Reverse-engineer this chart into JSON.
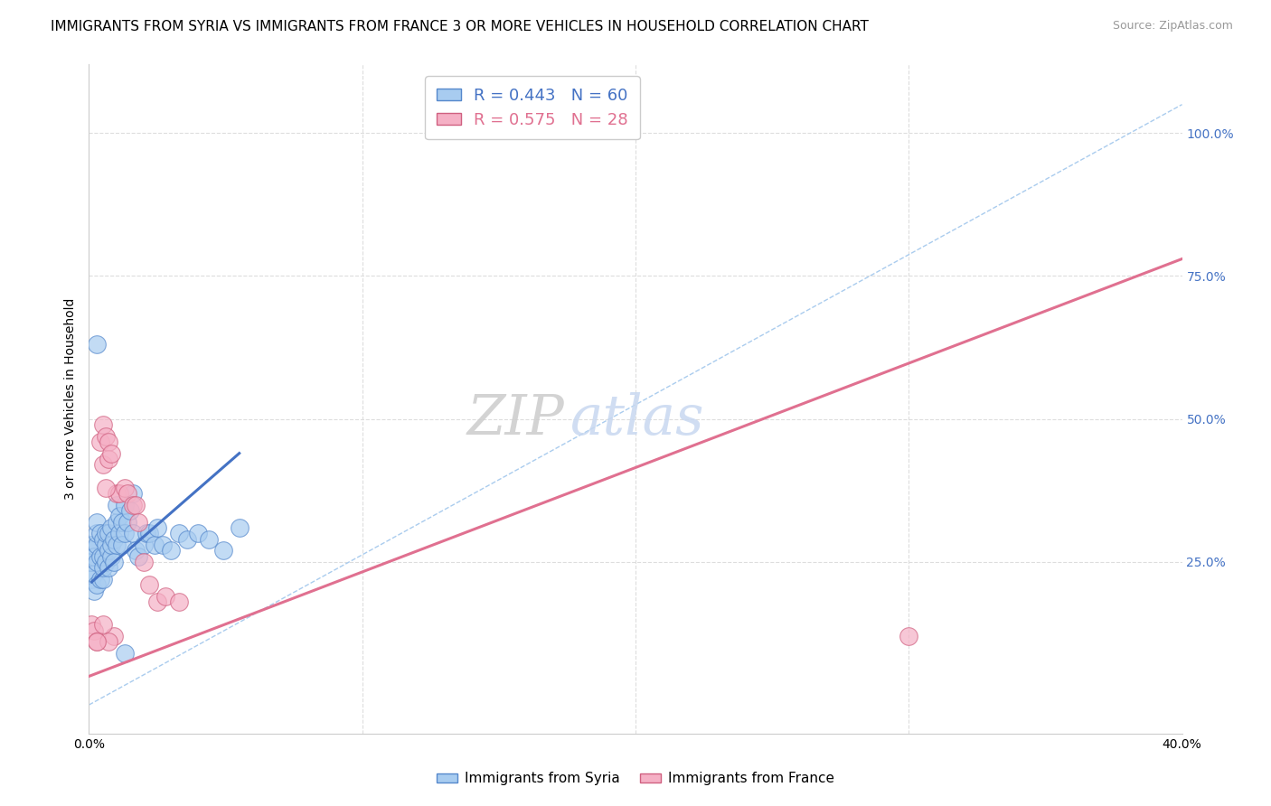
{
  "title": "IMMIGRANTS FROM SYRIA VS IMMIGRANTS FROM FRANCE 3 OR MORE VEHICLES IN HOUSEHOLD CORRELATION CHART",
  "source": "Source: ZipAtlas.com",
  "ylabel": "3 or more Vehicles in Household",
  "xmin": 0.0,
  "xmax": 0.4,
  "ymin": -0.05,
  "ymax": 1.12,
  "ytick_vals": [
    0.25,
    0.5,
    0.75,
    1.0
  ],
  "ytick_labels": [
    "25.0%",
    "50.0%",
    "75.0%",
    "100.0%"
  ],
  "xtick_vals": [
    0.0,
    0.1,
    0.2,
    0.3,
    0.4
  ],
  "xtick_labels": [
    "0.0%",
    "",
    "",
    "",
    "40.0%"
  ],
  "watermark": "ZIPatlas",
  "syria_R": 0.443,
  "syria_N": 60,
  "france_R": 0.575,
  "france_N": 28,
  "syria_fill": "#A8CCF0",
  "syria_edge": "#5588CC",
  "france_fill": "#F5B0C5",
  "france_edge": "#D06080",
  "syria_line_color": "#4472C4",
  "france_line_color": "#E07090",
  "diag_color": "#AACCEE",
  "grid_color": "#DDDDDD",
  "right_tick_color": "#4472C4",
  "title_fontsize": 11,
  "source_fontsize": 9,
  "ylabel_fontsize": 10,
  "tick_fontsize": 10,
  "legend_fontsize": 13,
  "watermark_color": "#C8D8F0",
  "syria_x": [
    0.001,
    0.001,
    0.001,
    0.001,
    0.002,
    0.002,
    0.002,
    0.003,
    0.003,
    0.003,
    0.003,
    0.003,
    0.004,
    0.004,
    0.004,
    0.005,
    0.005,
    0.005,
    0.005,
    0.006,
    0.006,
    0.006,
    0.007,
    0.007,
    0.007,
    0.008,
    0.008,
    0.008,
    0.009,
    0.009,
    0.01,
    0.01,
    0.01,
    0.011,
    0.011,
    0.012,
    0.012,
    0.013,
    0.013,
    0.014,
    0.015,
    0.016,
    0.016,
    0.017,
    0.018,
    0.02,
    0.021,
    0.022,
    0.024,
    0.025,
    0.027,
    0.03,
    0.033,
    0.036,
    0.04,
    0.044,
    0.049,
    0.055,
    0.003,
    0.013
  ],
  "syria_y": [
    0.22,
    0.25,
    0.27,
    0.28,
    0.2,
    0.23,
    0.26,
    0.21,
    0.25,
    0.28,
    0.3,
    0.32,
    0.22,
    0.26,
    0.3,
    0.22,
    0.24,
    0.26,
    0.29,
    0.25,
    0.28,
    0.3,
    0.24,
    0.27,
    0.3,
    0.26,
    0.28,
    0.31,
    0.25,
    0.29,
    0.28,
    0.32,
    0.35,
    0.3,
    0.33,
    0.28,
    0.32,
    0.3,
    0.35,
    0.32,
    0.34,
    0.3,
    0.37,
    0.27,
    0.26,
    0.28,
    0.3,
    0.3,
    0.28,
    0.31,
    0.28,
    0.27,
    0.3,
    0.29,
    0.3,
    0.29,
    0.27,
    0.31,
    0.63,
    0.09
  ],
  "france_x": [
    0.001,
    0.002,
    0.003,
    0.004,
    0.005,
    0.005,
    0.006,
    0.007,
    0.007,
    0.008,
    0.009,
    0.01,
    0.011,
    0.013,
    0.014,
    0.016,
    0.017,
    0.018,
    0.02,
    0.022,
    0.025,
    0.028,
    0.033,
    0.3,
    0.005,
    0.006,
    0.007,
    0.003
  ],
  "france_y": [
    0.14,
    0.13,
    0.11,
    0.46,
    0.49,
    0.42,
    0.47,
    0.46,
    0.43,
    0.44,
    0.12,
    0.37,
    0.37,
    0.38,
    0.37,
    0.35,
    0.35,
    0.32,
    0.25,
    0.21,
    0.18,
    0.19,
    0.18,
    0.12,
    0.14,
    0.38,
    0.11,
    0.11
  ],
  "france_line_x0": 0.0,
  "france_line_y0": 0.05,
  "france_line_x1": 0.4,
  "france_line_y1": 0.78,
  "syria_line_x0": 0.001,
  "syria_line_y0": 0.215,
  "syria_line_x1": 0.055,
  "syria_line_y1": 0.44
}
